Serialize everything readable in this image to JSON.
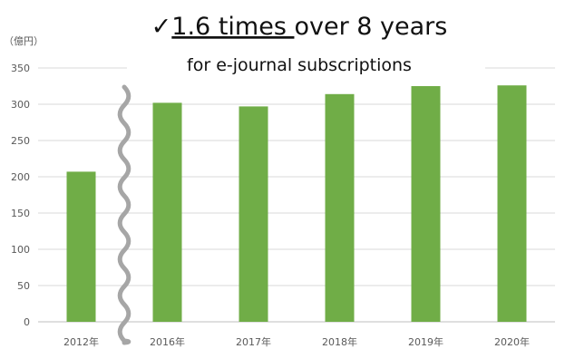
{
  "chart_data": {
    "type": "bar",
    "title_check": "✓",
    "title_emphasis": "1.6 times ",
    "title_rest": "over 8 years",
    "subtitle": "for e-journal subscriptions",
    "unit_label": "（億円）",
    "categories": [
      "2012年",
      "2016年",
      "2017年",
      "2018年",
      "2019年",
      "2020年"
    ],
    "values": [
      207,
      302,
      297,
      314,
      325,
      326
    ],
    "ylim": [
      0,
      350
    ],
    "yticks": [
      0,
      50,
      100,
      150,
      200,
      250,
      300,
      350
    ],
    "axis_break_after_index": 0,
    "bar_color": "#70ad47",
    "grid": true
  }
}
